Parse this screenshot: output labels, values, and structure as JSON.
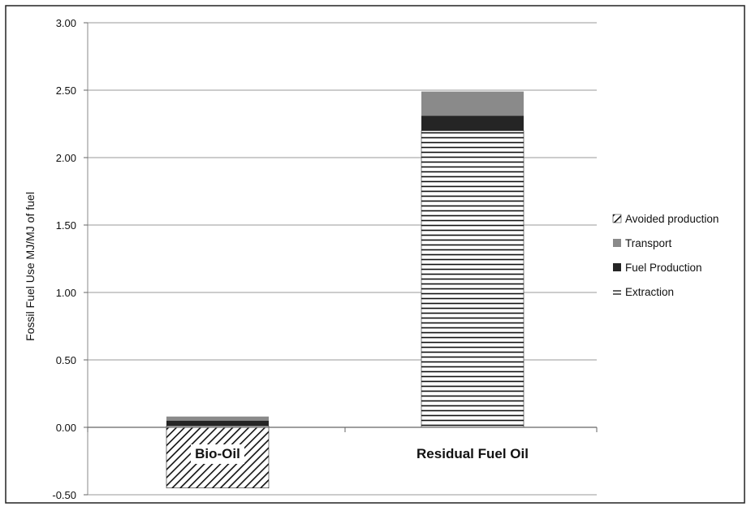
{
  "chart_data": {
    "type": "bar",
    "stacked": true,
    "title": "",
    "xlabel": "",
    "ylabel": "Fossil Fuel Use MJ/MJ of fuel",
    "ylim": [
      -0.5,
      3.0
    ],
    "yticks": [
      "-0.50",
      "0.00",
      "0.50",
      "1.00",
      "1.50",
      "2.00",
      "2.50",
      "3.00"
    ],
    "grid": true,
    "legend_position": "right",
    "categories": [
      "Bio-Oil",
      "Residual Fuel Oil"
    ],
    "series": [
      {
        "name": "Extraction",
        "values": [
          0.01,
          2.2
        ],
        "fill": "horizontal-lines",
        "color": "#111111"
      },
      {
        "name": "Fuel Production",
        "values": [
          0.04,
          0.11
        ],
        "fill": "solid",
        "color": "#252525"
      },
      {
        "name": "Transport",
        "values": [
          0.03,
          0.18
        ],
        "fill": "solid",
        "color": "#8a8a8a"
      },
      {
        "name": "Avoided production",
        "values": [
          -0.45,
          0
        ],
        "fill": "diagonal-hatch",
        "color": "#111111"
      }
    ],
    "legend_order": [
      "Avoided production",
      "Transport",
      "Fuel Production",
      "Extraction"
    ]
  }
}
